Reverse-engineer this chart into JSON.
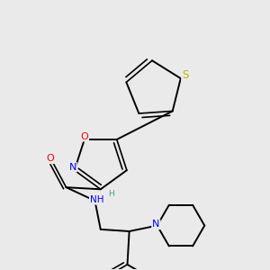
{
  "bg_color": "#eaeaea",
  "bond_color": "#000000",
  "atom_colors": {
    "S": "#b8b800",
    "O": "#ff0000",
    "N": "#0000ee",
    "C": "#000000",
    "H": "#4a9a9a"
  }
}
